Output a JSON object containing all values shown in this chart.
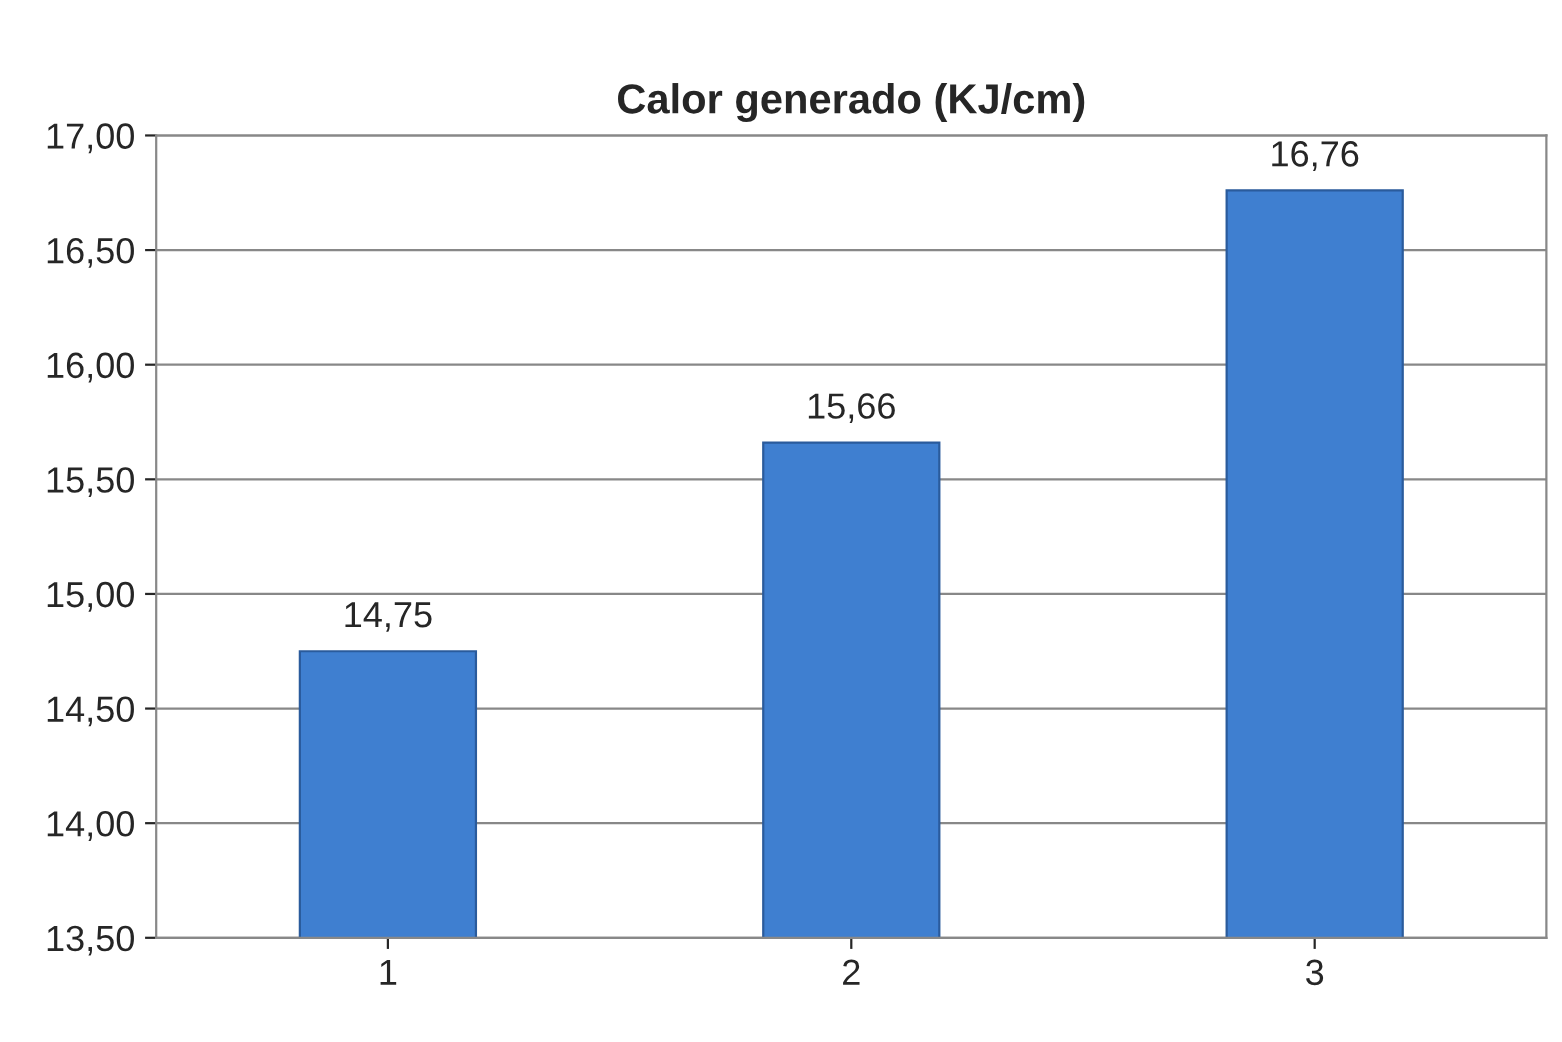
{
  "chart_data": {
    "type": "bar",
    "title": "Calor generado (KJ/cm)",
    "categories": [
      "1",
      "2",
      "3"
    ],
    "values": [
      14.75,
      15.66,
      16.76
    ],
    "value_labels": [
      "14,75",
      "15,66",
      "16,76"
    ],
    "color": "#3f7fd0",
    "ylim": [
      13.5,
      17.0
    ],
    "yticks": [
      {
        "value": 13.5,
        "label": "13,50"
      },
      {
        "value": 14.0,
        "label": "14,00"
      },
      {
        "value": 14.5,
        "label": "14,50"
      },
      {
        "value": 15.0,
        "label": "15,00"
      },
      {
        "value": 15.5,
        "label": "15,50"
      },
      {
        "value": 16.0,
        "label": "16,00"
      },
      {
        "value": 16.5,
        "label": "16,50"
      },
      {
        "value": 17.0,
        "label": "17,00"
      }
    ],
    "grid": "y",
    "legend": false
  }
}
